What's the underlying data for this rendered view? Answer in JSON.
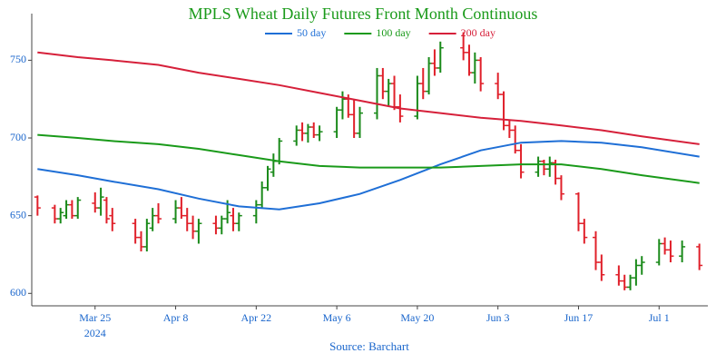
{
  "chart_data": {
    "type": "ohlc",
    "title": "MPLS Wheat Daily Futures Front Month Continuous",
    "source": "Source: Barchart",
    "year_label": "2024",
    "up_color": "#1a8a1a",
    "down_color": "#e0202a",
    "x": [
      "2024-03-15",
      "2024-03-18",
      "2024-03-19",
      "2024-03-20",
      "2024-03-21",
      "2024-03-22",
      "2024-03-25",
      "2024-03-26",
      "2024-03-27",
      "2024-03-28",
      "2024-04-01",
      "2024-04-02",
      "2024-04-03",
      "2024-04-04",
      "2024-04-05",
      "2024-04-08",
      "2024-04-09",
      "2024-04-10",
      "2024-04-11",
      "2024-04-12",
      "2024-04-15",
      "2024-04-16",
      "2024-04-17",
      "2024-04-18",
      "2024-04-19",
      "2024-04-22",
      "2024-04-23",
      "2024-04-24",
      "2024-04-25",
      "2024-04-26",
      "2024-04-29",
      "2024-04-30",
      "2024-05-01",
      "2024-05-02",
      "2024-05-03",
      "2024-05-06",
      "2024-05-07",
      "2024-05-08",
      "2024-05-09",
      "2024-05-10",
      "2024-05-13",
      "2024-05-14",
      "2024-05-15",
      "2024-05-16",
      "2024-05-17",
      "2024-05-20",
      "2024-05-21",
      "2024-05-22",
      "2024-05-23",
      "2024-05-24",
      "2024-05-28",
      "2024-05-29",
      "2024-05-30",
      "2024-05-31",
      "2024-06-03",
      "2024-06-04",
      "2024-06-05",
      "2024-06-06",
      "2024-06-07",
      "2024-06-10",
      "2024-06-11",
      "2024-06-12",
      "2024-06-13",
      "2024-06-14",
      "2024-06-17",
      "2024-06-18",
      "2024-06-20",
      "2024-06-21",
      "2024-06-24",
      "2024-06-25",
      "2024-06-26",
      "2024-06-27",
      "2024-06-28",
      "2024-07-01",
      "2024-07-02",
      "2024-07-03",
      "2024-07-05",
      "2024-07-08"
    ],
    "ohlc": [
      [
        662,
        663,
        650,
        655
      ],
      [
        655,
        657,
        645,
        648
      ],
      [
        648,
        655,
        645,
        652
      ],
      [
        650,
        660,
        648,
        657
      ],
      [
        657,
        660,
        648,
        650
      ],
      [
        650,
        662,
        648,
        660
      ],
      [
        658,
        665,
        652,
        655
      ],
      [
        655,
        668,
        650,
        662
      ],
      [
        660,
        662,
        645,
        648
      ],
      [
        650,
        655,
        640,
        645
      ],
      [
        645,
        648,
        632,
        636
      ],
      [
        636,
        640,
        627,
        630
      ],
      [
        630,
        648,
        627,
        645
      ],
      [
        642,
        655,
        640,
        650
      ],
      [
        650,
        658,
        645,
        648
      ],
      [
        648,
        660,
        645,
        655
      ],
      [
        655,
        662,
        648,
        650
      ],
      [
        650,
        655,
        640,
        645
      ],
      [
        645,
        650,
        635,
        640
      ],
      [
        640,
        648,
        632,
        645
      ],
      [
        645,
        650,
        638,
        642
      ],
      [
        642,
        650,
        638,
        648
      ],
      [
        648,
        660,
        645,
        652
      ],
      [
        650,
        655,
        640,
        645
      ],
      [
        645,
        652,
        640,
        650
      ],
      [
        650,
        660,
        645,
        657
      ],
      [
        657,
        672,
        655,
        668
      ],
      [
        668,
        682,
        666,
        680
      ],
      [
        678,
        690,
        675,
        685
      ],
      [
        685,
        700,
        683,
        698
      ],
      [
        698,
        708,
        695,
        705
      ],
      [
        705,
        710,
        698,
        703
      ],
      [
        703,
        709,
        697,
        707
      ],
      [
        707,
        710,
        700,
        702
      ],
      [
        702,
        708,
        698,
        704
      ],
      [
        704,
        720,
        700,
        718
      ],
      [
        718,
        730,
        712,
        725
      ],
      [
        725,
        728,
        713,
        715
      ],
      [
        715,
        725,
        700,
        703
      ],
      [
        703,
        720,
        700,
        716
      ],
      [
        716,
        745,
        712,
        740
      ],
      [
        740,
        745,
        725,
        730
      ],
      [
        730,
        738,
        720,
        735
      ],
      [
        735,
        740,
        718,
        720
      ],
      [
        720,
        728,
        710,
        714
      ],
      [
        714,
        740,
        712,
        735
      ],
      [
        735,
        745,
        725,
        730
      ],
      [
        730,
        752,
        728,
        748
      ],
      [
        748,
        757,
        740,
        745
      ],
      [
        745,
        762,
        742,
        758
      ],
      [
        758,
        768,
        750,
        755
      ],
      [
        755,
        760,
        740,
        742
      ],
      [
        742,
        755,
        735,
        750
      ],
      [
        750,
        752,
        730,
        735
      ],
      [
        735,
        742,
        725,
        728
      ],
      [
        728,
        730,
        705,
        708
      ],
      [
        708,
        712,
        700,
        705
      ],
      [
        705,
        708,
        690,
        692
      ],
      [
        692,
        696,
        674,
        678
      ],
      [
        678,
        688,
        675,
        685
      ],
      [
        685,
        686,
        676,
        680
      ],
      [
        680,
        688,
        675,
        684
      ],
      [
        684,
        686,
        670,
        674
      ],
      [
        674,
        676,
        660,
        664
      ],
      [
        664,
        665,
        640,
        645
      ],
      [
        645,
        648,
        632,
        636
      ],
      [
        636,
        640,
        615,
        620
      ],
      [
        620,
        625,
        608,
        612
      ],
      [
        612,
        618,
        605,
        608
      ],
      [
        608,
        612,
        602,
        604
      ],
      [
        604,
        612,
        602,
        610
      ],
      [
        610,
        622,
        605,
        618
      ],
      [
        618,
        624,
        612,
        620
      ],
      [
        620,
        635,
        618,
        632
      ],
      [
        632,
        636,
        625,
        628
      ],
      [
        628,
        634,
        620,
        624
      ],
      [
        624,
        634,
        620,
        630
      ],
      [
        630,
        632,
        615,
        618
      ]
    ],
    "series": [
      {
        "name": "50 day",
        "color": "#1f6fd6",
        "x": [
          "2024-03-15",
          "2024-03-22",
          "2024-03-28",
          "2024-04-05",
          "2024-04-12",
          "2024-04-19",
          "2024-04-26",
          "2024-05-03",
          "2024-05-10",
          "2024-05-17",
          "2024-05-24",
          "2024-05-31",
          "2024-06-07",
          "2024-06-14",
          "2024-06-21",
          "2024-06-28",
          "2024-07-08"
        ],
        "values": [
          680,
          676,
          672,
          667,
          661,
          656,
          654,
          658,
          664,
          673,
          683,
          692,
          697,
          698,
          697,
          694,
          688
        ]
      },
      {
        "name": "100 day",
        "color": "#1a9a1a",
        "x": [
          "2024-03-15",
          "2024-03-22",
          "2024-03-28",
          "2024-04-05",
          "2024-04-12",
          "2024-04-19",
          "2024-04-26",
          "2024-05-03",
          "2024-05-10",
          "2024-05-17",
          "2024-05-24",
          "2024-05-31",
          "2024-06-07",
          "2024-06-14",
          "2024-06-21",
          "2024-06-28",
          "2024-07-08"
        ],
        "values": [
          702,
          700,
          698,
          696,
          693,
          689,
          685,
          682,
          681,
          681,
          681,
          682,
          683,
          683,
          680,
          676,
          671
        ]
      },
      {
        "name": "200 day",
        "color": "#d6203a",
        "x": [
          "2024-03-15",
          "2024-03-22",
          "2024-03-28",
          "2024-04-05",
          "2024-04-12",
          "2024-04-19",
          "2024-04-26",
          "2024-05-03",
          "2024-05-10",
          "2024-05-17",
          "2024-05-24",
          "2024-05-31",
          "2024-06-07",
          "2024-06-14",
          "2024-06-21",
          "2024-06-28",
          "2024-07-08"
        ],
        "values": [
          755,
          752,
          750,
          747,
          742,
          738,
          734,
          729,
          724,
          719,
          716,
          713,
          711,
          708,
          705,
          701,
          696
        ]
      }
    ],
    "xlim": [
      "2024-03-14",
      "2024-07-09"
    ],
    "xticks": [
      {
        "value": "2024-03-25",
        "label": "Mar 25"
      },
      {
        "value": "2024-04-08",
        "label": "Apr 8"
      },
      {
        "value": "2024-04-22",
        "label": "Apr 22"
      },
      {
        "value": "2024-05-06",
        "label": "May 6"
      },
      {
        "value": "2024-05-20",
        "label": "May 20"
      },
      {
        "value": "2024-06-03",
        "label": "Jun 3"
      },
      {
        "value": "2024-06-17",
        "label": "Jun 17"
      },
      {
        "value": "2024-07-01",
        "label": "Jul 1"
      }
    ],
    "ylim": [
      592,
      780
    ],
    "yticks": [
      600,
      650,
      700,
      750
    ],
    "grid": false,
    "legend": "top"
  }
}
